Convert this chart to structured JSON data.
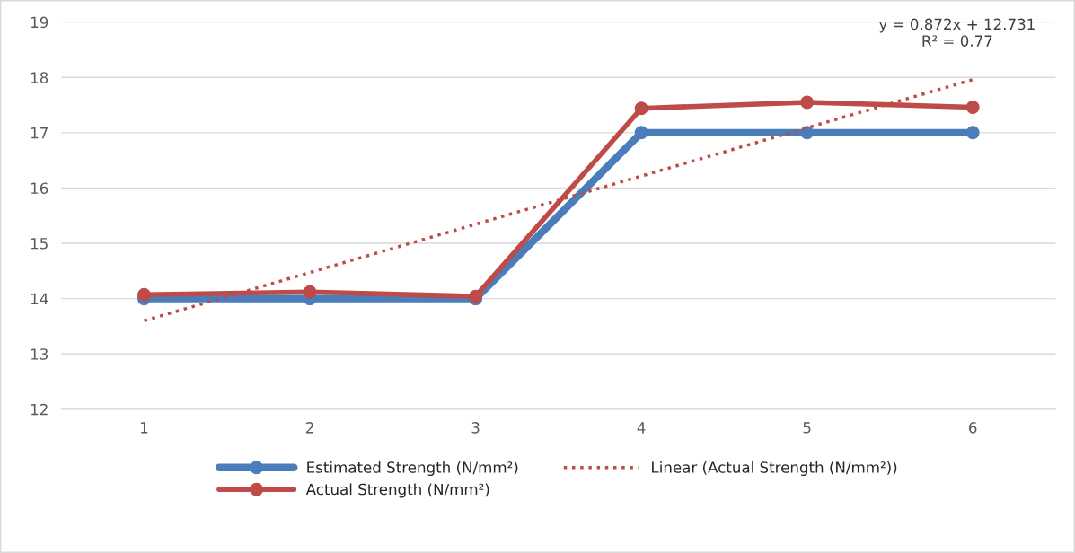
{
  "chart_data": {
    "type": "line",
    "x": [
      1,
      2,
      3,
      4,
      5,
      6
    ],
    "xlim": [
      0.5,
      6.5
    ],
    "xticks": [
      1,
      2,
      3,
      4,
      5,
      6
    ],
    "ylim": [
      12,
      19
    ],
    "yticks": [
      12,
      13,
      14,
      15,
      16,
      17,
      18,
      19
    ],
    "grid": "y",
    "legend": "bottom",
    "marker": "circle",
    "series": [
      {
        "name": "Estimated Strength (N/mm²)",
        "color": "#4a7ebb",
        "values": [
          14,
          14,
          14,
          17,
          17,
          17
        ]
      },
      {
        "name": "Actual Strength (N/mm²)",
        "color": "#be4b48",
        "values": [
          14.07,
          14.12,
          14.04,
          17.44,
          17.55,
          17.46
        ]
      },
      {
        "name": "Linear (Actual Strength (N/mm²))",
        "color": "#be4b48",
        "x": [
          1,
          6
        ],
        "values": [
          13.6,
          17.96
        ],
        "marker": "none",
        "line_style": "dotted"
      }
    ],
    "annotations": [
      "y = 0.872x + 12.731\nR² = 0.77"
    ]
  }
}
